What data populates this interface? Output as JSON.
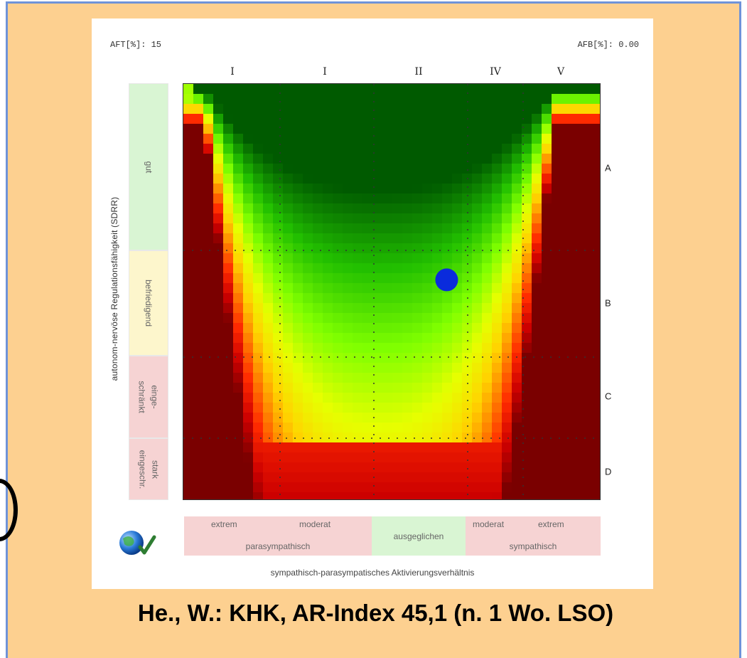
{
  "caption": "He., W.: KHK, AR-Index 45,1 (n. 1 Wo. LSO)",
  "header": {
    "left": "AFT[%]: 15",
    "right": "AFB[%]: 0.00"
  },
  "chart_data": {
    "type": "heatmap",
    "title": "",
    "xlabel": "sympathisch-parasympatisches Aktivierungsverhältnis",
    "ylabel": "autonom-nervöse Regulationsfähigkeit (SDRR)",
    "col_ticks": [
      "I",
      "I",
      "II",
      "IV",
      "V"
    ],
    "row_ticks": [
      "A",
      "B",
      "C",
      "D"
    ],
    "y_bands": [
      {
        "label": "gut",
        "color": "#d9f5d3"
      },
      {
        "label": "befriedigend",
        "color": "#fdf6cc"
      },
      {
        "label_lines": [
          "einge-",
          "schränkt"
        ],
        "color": "#f6d3d3"
      },
      {
        "label_lines": [
          "stark",
          "eingeschr."
        ],
        "color": "#f6d3d3"
      }
    ],
    "x_bands": [
      {
        "top_left": "extrem",
        "top_right": "moderat",
        "bottom": "parasympathisch",
        "color": "#f6d3d3"
      },
      {
        "label": "ausgeglichen",
        "color": "#d9f5d3"
      },
      {
        "top_left": "moderat",
        "top_right": "extrem",
        "bottom": "sympathisch",
        "color": "#f6d3d3"
      }
    ],
    "point": {
      "x": 0.63,
      "y": 0.47,
      "color": "#0a2bdc"
    },
    "colorscale": [
      "#7a0000",
      "#cc0000",
      "#ff2a00",
      "#ff7f00",
      "#ffd400",
      "#e6ff00",
      "#7fff00",
      "#22c000",
      "#005a00"
    ]
  }
}
